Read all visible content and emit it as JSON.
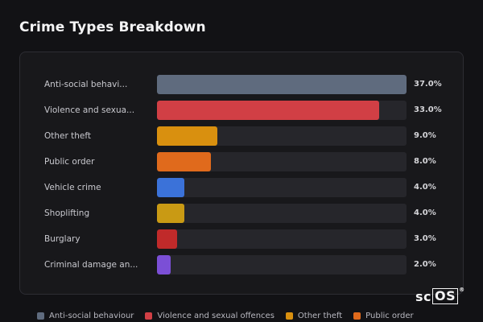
{
  "title": "Crime Types Breakdown",
  "brand": {
    "text": "sc",
    "boxed": "OS",
    "mark": "®"
  },
  "chart_data": {
    "type": "bar",
    "orientation": "horizontal",
    "title": "Crime Types Breakdown",
    "xlim": [
      0,
      37
    ],
    "categories": [
      "Anti-social behavi...",
      "Violence and sexua...",
      "Other theft",
      "Public order",
      "Vehicle crime",
      "Shoplifting",
      "Burglary",
      "Criminal damage an..."
    ],
    "values": [
      37.0,
      33.0,
      9.0,
      8.0,
      4.0,
      4.0,
      3.0,
      2.0
    ],
    "value_labels": [
      "37.0%",
      "33.0%",
      "9.0%",
      "8.0%",
      "4.0%",
      "4.0%",
      "3.0%",
      "2.0%"
    ],
    "colors": [
      "#5f6b7e",
      "#d13f45",
      "#d9900f",
      "#e06a1c",
      "#3b72d9",
      "#c99a14",
      "#c02a2a",
      "#7b4fd6"
    ],
    "legend": {
      "position": "bottom",
      "entries": [
        {
          "label": "Anti-social behaviour",
          "color": "#5f6b7e"
        },
        {
          "label": "Violence and sexual offences",
          "color": "#d13f45"
        },
        {
          "label": "Other theft",
          "color": "#d9900f"
        },
        {
          "label": "Public order",
          "color": "#e06a1c"
        }
      ]
    }
  }
}
